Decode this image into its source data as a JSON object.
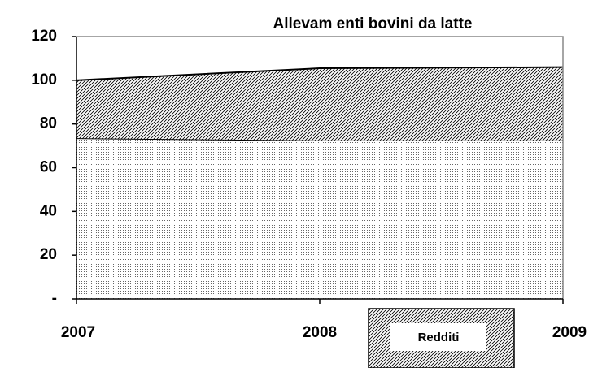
{
  "chart_data": {
    "type": "stacked_area",
    "title": "Allevam enti bovini da latte",
    "categories": [
      "2007",
      "2008",
      "2009"
    ],
    "series": [
      {
        "color": "#000000",
        "values": [
          73.5,
          72.5,
          72.5
        ]
      },
      {
        "name": "Redditi",
        "color": "#000000",
        "values": [
          26.5,
          33,
          33.5
        ]
      }
    ],
    "ylim": [
      0,
      120
    ],
    "yticks": [
      {
        "value": 0,
        "label": "-"
      },
      20,
      40,
      60,
      80,
      100,
      120
    ]
  }
}
